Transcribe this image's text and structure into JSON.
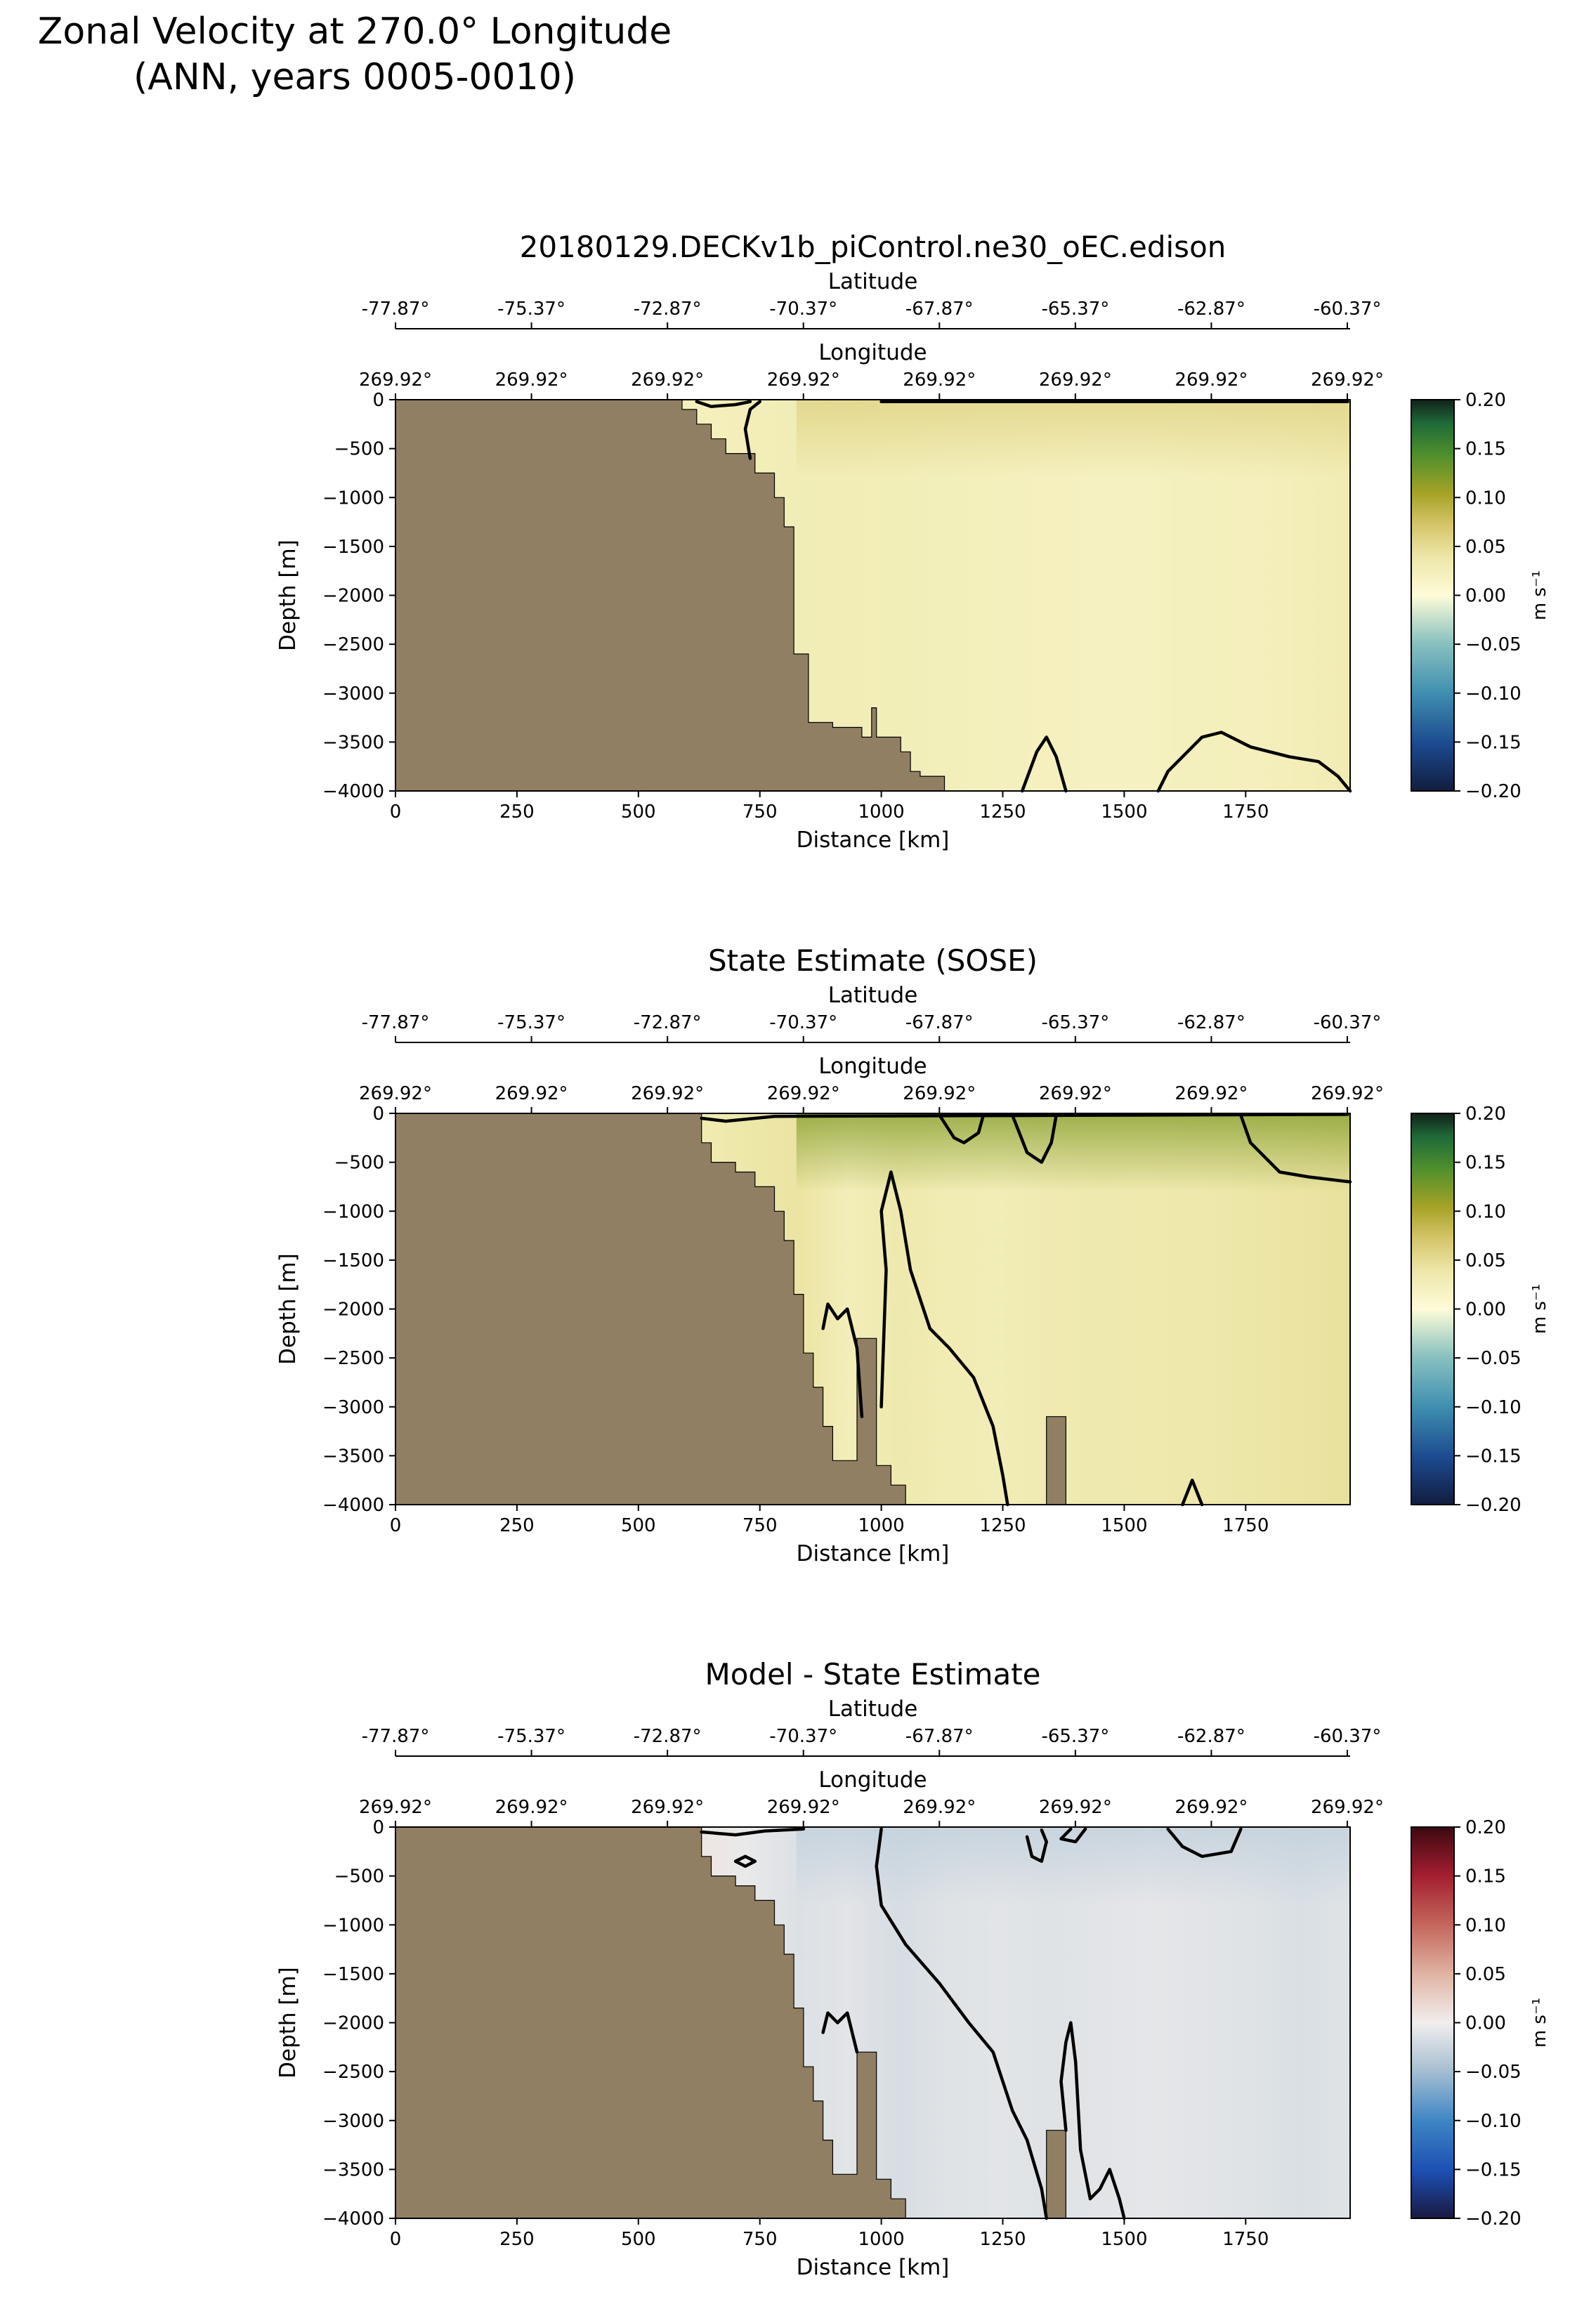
{
  "figure": {
    "suptitle": [
      "Zonal Velocity at 270.0° Longitude",
      "(ANN, years 0005-0010)"
    ]
  },
  "colors": {
    "land": "#917f63",
    "contour": "#000000"
  },
  "chart_data": [
    {
      "type": "heatmap",
      "title": "20180129.DECKv1b_piControl.ne30_oEC.edison",
      "xlabel": "Distance [km]",
      "ylabel": "Depth [m]",
      "xlim": [
        0,
        1965
      ],
      "ylim": [
        -4000,
        0
      ],
      "xticks": [
        0,
        250,
        500,
        750,
        1000,
        1250,
        1500,
        1750
      ],
      "yticks": [
        0,
        -500,
        -1000,
        -1500,
        -2000,
        -2500,
        -3000,
        -3500,
        -4000
      ],
      "top_axis_1": {
        "label": "Latitude",
        "ticks": [
          "-77.87°",
          "-75.37°",
          "-72.87°",
          "-70.37°",
          "-67.87°",
          "-65.37°",
          "-62.87°",
          "-60.37°"
        ]
      },
      "top_axis_2": {
        "label": "Longitude",
        "ticks": [
          "269.92°",
          "269.92°",
          "269.92°",
          "269.92°",
          "269.92°",
          "269.92°",
          "269.92°",
          "269.92°"
        ]
      },
      "colorbar": {
        "label": "m s⁻¹",
        "range": [
          -0.2,
          0.2
        ],
        "ticks": [
          "0.20",
          "0.15",
          "0.10",
          "0.05",
          "0.00",
          "−0.05",
          "−0.10",
          "−0.15",
          "−0.20"
        ],
        "colormap": "delta"
      },
      "bathymetry": [
        [
          0,
          0
        ],
        [
          590,
          0
        ],
        [
          590,
          -100
        ],
        [
          620,
          -100
        ],
        [
          620,
          -250
        ],
        [
          650,
          -250
        ],
        [
          650,
          -400
        ],
        [
          680,
          -400
        ],
        [
          680,
          -550
        ],
        [
          740,
          -550
        ],
        [
          740,
          -750
        ],
        [
          780,
          -750
        ],
        [
          780,
          -1000
        ],
        [
          800,
          -1000
        ],
        [
          800,
          -1300
        ],
        [
          820,
          -1300
        ],
        [
          820,
          -2600
        ],
        [
          850,
          -2600
        ],
        [
          850,
          -3300
        ],
        [
          900,
          -3300
        ],
        [
          900,
          -3350
        ],
        [
          960,
          -3350
        ],
        [
          960,
          -3450
        ],
        [
          980,
          -3450
        ],
        [
          980,
          -3150
        ],
        [
          990,
          -3150
        ],
        [
          990,
          -3450
        ],
        [
          1040,
          -3450
        ],
        [
          1040,
          -3600
        ],
        [
          1060,
          -3600
        ],
        [
          1060,
          -3800
        ],
        [
          1080,
          -3800
        ],
        [
          1080,
          -3850
        ],
        [
          1130,
          -3850
        ],
        [
          1130,
          -4000
        ],
        [
          0,
          -4000
        ]
      ],
      "zero_contours": [
        [
          [
            620,
            -20
          ],
          [
            650,
            -70
          ],
          [
            700,
            -50
          ],
          [
            730,
            -20
          ]
        ],
        [
          [
            750,
            -20
          ],
          [
            730,
            -100
          ],
          [
            720,
            -300
          ],
          [
            730,
            -600
          ]
        ],
        [
          [
            1000,
            -20
          ],
          [
            1960,
            -20
          ]
        ],
        [
          [
            1290,
            -4000
          ],
          [
            1320,
            -3600
          ],
          [
            1340,
            -3450
          ],
          [
            1360,
            -3650
          ],
          [
            1380,
            -4000
          ]
        ],
        [
          [
            1570,
            -4000
          ],
          [
            1590,
            -3800
          ],
          [
            1620,
            -3650
          ],
          [
            1660,
            -3450
          ],
          [
            1700,
            -3400
          ],
          [
            1760,
            -3550
          ],
          [
            1840,
            -3650
          ],
          [
            1900,
            -3700
          ],
          [
            1940,
            -3850
          ],
          [
            1965,
            -4000
          ]
        ]
      ],
      "field_profile": [
        0.002,
        0.003,
        0.006,
        0.012,
        0.018,
        0.02,
        0.022,
        0.025,
        0.028,
        0.027,
        0.026,
        0.024,
        0.022,
        0.021,
        0.02,
        0.02,
        0.022,
        0.023,
        0.025,
        0.03
      ],
      "surface_boost": 0.015
    },
    {
      "type": "heatmap",
      "title": "State Estimate (SOSE)",
      "xlabel": "Distance [km]",
      "ylabel": "Depth [m]",
      "xlim": [
        0,
        1965
      ],
      "ylim": [
        -4000,
        0
      ],
      "xticks": [
        0,
        250,
        500,
        750,
        1000,
        1250,
        1500,
        1750
      ],
      "yticks": [
        0,
        -500,
        -1000,
        -1500,
        -2000,
        -2500,
        -3000,
        -3500,
        -4000
      ],
      "top_axis_1": {
        "label": "Latitude",
        "ticks": [
          "-77.87°",
          "-75.37°",
          "-72.87°",
          "-70.37°",
          "-67.87°",
          "-65.37°",
          "-62.87°",
          "-60.37°"
        ]
      },
      "top_axis_2": {
        "label": "Longitude",
        "ticks": [
          "269.92°",
          "269.92°",
          "269.92°",
          "269.92°",
          "269.92°",
          "269.92°",
          "269.92°",
          "269.92°"
        ]
      },
      "colorbar": {
        "label": "m s⁻¹",
        "range": [
          -0.2,
          0.2
        ],
        "ticks": [
          "0.20",
          "0.15",
          "0.10",
          "0.05",
          "0.00",
          "−0.05",
          "−0.10",
          "−0.15",
          "−0.20"
        ],
        "colormap": "delta"
      },
      "bathymetry": [
        [
          0,
          0
        ],
        [
          630,
          0
        ],
        [
          630,
          -300
        ],
        [
          650,
          -300
        ],
        [
          650,
          -500
        ],
        [
          700,
          -500
        ],
        [
          700,
          -600
        ],
        [
          740,
          -600
        ],
        [
          740,
          -750
        ],
        [
          780,
          -750
        ],
        [
          780,
          -1000
        ],
        [
          800,
          -1000
        ],
        [
          800,
          -1300
        ],
        [
          820,
          -1300
        ],
        [
          820,
          -1850
        ],
        [
          840,
          -1850
        ],
        [
          840,
          -2450
        ],
        [
          860,
          -2450
        ],
        [
          860,
          -2800
        ],
        [
          880,
          -2800
        ],
        [
          880,
          -3200
        ],
        [
          900,
          -3200
        ],
        [
          900,
          -3550
        ],
        [
          950,
          -3550
        ],
        [
          950,
          -2300
        ],
        [
          990,
          -2300
        ],
        [
          990,
          -3600
        ],
        [
          1020,
          -3600
        ],
        [
          1020,
          -3800
        ],
        [
          1050,
          -3800
        ],
        [
          1050,
          -4000
        ],
        [
          1340,
          -4000
        ],
        [
          1340,
          -3100
        ],
        [
          1380,
          -3100
        ],
        [
          1380,
          -4000
        ],
        [
          0,
          -4000
        ]
      ],
      "zero_contours": [
        [
          [
            630,
            -50
          ],
          [
            680,
            -80
          ],
          [
            720,
            -60
          ],
          [
            780,
            -30
          ],
          [
            1960,
            -10
          ]
        ],
        [
          [
            1120,
            -20
          ],
          [
            1150,
            -250
          ],
          [
            1170,
            -300
          ],
          [
            1200,
            -200
          ],
          [
            1210,
            -20
          ]
        ],
        [
          [
            1270,
            -20
          ],
          [
            1300,
            -400
          ],
          [
            1330,
            -500
          ],
          [
            1350,
            -300
          ],
          [
            1360,
            -20
          ]
        ],
        [
          [
            1740,
            -20
          ],
          [
            1760,
            -300
          ],
          [
            1820,
            -600
          ],
          [
            1880,
            -650
          ],
          [
            1965,
            -700
          ]
        ],
        [
          [
            880,
            -2200
          ],
          [
            890,
            -1950
          ],
          [
            910,
            -2100
          ],
          [
            930,
            -2000
          ],
          [
            950,
            -2400
          ],
          [
            960,
            -3100
          ]
        ],
        [
          [
            1000,
            -3000
          ],
          [
            1010,
            -1600
          ],
          [
            1000,
            -1000
          ],
          [
            1020,
            -600
          ],
          [
            1040,
            -1000
          ],
          [
            1060,
            -1600
          ],
          [
            1100,
            -2200
          ],
          [
            1140,
            -2400
          ],
          [
            1190,
            -2700
          ],
          [
            1230,
            -3200
          ],
          [
            1250,
            -3700
          ],
          [
            1260,
            -4000
          ]
        ],
        [
          [
            1620,
            -4000
          ],
          [
            1640,
            -3750
          ],
          [
            1660,
            -4000
          ]
        ]
      ],
      "field_profile": [
        0.005,
        0.006,
        0.01,
        0.02,
        0.028,
        0.032,
        0.03,
        0.038,
        0.042,
        0.025,
        0.035,
        0.03,
        0.028,
        0.032,
        0.035,
        0.034,
        0.036,
        0.04,
        0.042,
        0.045
      ],
      "surface_boost": 0.03
    },
    {
      "type": "heatmap",
      "title": "Model - State Estimate",
      "xlabel": "Distance [km]",
      "ylabel": "Depth [m]",
      "xlim": [
        0,
        1965
      ],
      "ylim": [
        -4000,
        0
      ],
      "xticks": [
        0,
        250,
        500,
        750,
        1000,
        1250,
        1500,
        1750
      ],
      "yticks": [
        0,
        -500,
        -1000,
        -1500,
        -2000,
        -2500,
        -3000,
        -3500,
        -4000
      ],
      "top_axis_1": {
        "label": "Latitude",
        "ticks": [
          "-77.87°",
          "-75.37°",
          "-72.87°",
          "-70.37°",
          "-67.87°",
          "-65.37°",
          "-62.87°",
          "-60.37°"
        ]
      },
      "top_axis_2": {
        "label": "Longitude",
        "ticks": [
          "269.92°",
          "269.92°",
          "269.92°",
          "269.92°",
          "269.92°",
          "269.92°",
          "269.92°",
          "269.92°"
        ]
      },
      "colorbar": {
        "label": "m s⁻¹",
        "range": [
          -0.2,
          0.2
        ],
        "ticks": [
          "0.20",
          "0.15",
          "0.10",
          "0.05",
          "0.00",
          "−0.05",
          "−0.10",
          "−0.15",
          "−0.20"
        ],
        "colormap": "balance"
      },
      "bathymetry": [
        [
          0,
          0
        ],
        [
          630,
          0
        ],
        [
          630,
          -300
        ],
        [
          650,
          -300
        ],
        [
          650,
          -500
        ],
        [
          700,
          -500
        ],
        [
          700,
          -600
        ],
        [
          740,
          -600
        ],
        [
          740,
          -750
        ],
        [
          780,
          -750
        ],
        [
          780,
          -1000
        ],
        [
          800,
          -1000
        ],
        [
          800,
          -1300
        ],
        [
          820,
          -1300
        ],
        [
          820,
          -1850
        ],
        [
          840,
          -1850
        ],
        [
          840,
          -2450
        ],
        [
          860,
          -2450
        ],
        [
          860,
          -2800
        ],
        [
          880,
          -2800
        ],
        [
          880,
          -3200
        ],
        [
          900,
          -3200
        ],
        [
          900,
          -3550
        ],
        [
          950,
          -3550
        ],
        [
          950,
          -2300
        ],
        [
          990,
          -2300
        ],
        [
          990,
          -3600
        ],
        [
          1020,
          -3600
        ],
        [
          1020,
          -3800
        ],
        [
          1050,
          -3800
        ],
        [
          1050,
          -4000
        ],
        [
          1340,
          -4000
        ],
        [
          1340,
          -3100
        ],
        [
          1380,
          -3100
        ],
        [
          1380,
          -4000
        ],
        [
          0,
          -4000
        ]
      ],
      "zero_contours": [
        [
          [
            630,
            -50
          ],
          [
            700,
            -80
          ],
          [
            760,
            -40
          ],
          [
            840,
            -20
          ]
        ],
        [
          [
            700,
            -350
          ],
          [
            720,
            -300
          ],
          [
            740,
            -350
          ],
          [
            720,
            -400
          ],
          [
            700,
            -350
          ]
        ],
        [
          [
            1000,
            -20
          ],
          [
            990,
            -400
          ],
          [
            1000,
            -800
          ],
          [
            1050,
            -1200
          ],
          [
            1120,
            -1600
          ],
          [
            1180,
            -2000
          ],
          [
            1230,
            -2300
          ],
          [
            1250,
            -2600
          ],
          [
            1270,
            -2900
          ],
          [
            1300,
            -3200
          ],
          [
            1330,
            -3700
          ],
          [
            1340,
            -4000
          ]
        ],
        [
          [
            880,
            -2100
          ],
          [
            890,
            -1900
          ],
          [
            910,
            -2000
          ],
          [
            930,
            -1900
          ],
          [
            950,
            -2300
          ]
        ],
        [
          [
            1300,
            -100
          ],
          [
            1310,
            -300
          ],
          [
            1330,
            -350
          ],
          [
            1340,
            -150
          ],
          [
            1330,
            -30
          ]
        ],
        [
          [
            1390,
            -20
          ],
          [
            1370,
            -120
          ],
          [
            1400,
            -150
          ],
          [
            1420,
            -20
          ]
        ],
        [
          [
            1590,
            -20
          ],
          [
            1620,
            -200
          ],
          [
            1660,
            -300
          ],
          [
            1720,
            -250
          ],
          [
            1740,
            -20
          ]
        ],
        [
          [
            1380,
            -3100
          ],
          [
            1370,
            -2600
          ],
          [
            1380,
            -2200
          ],
          [
            1390,
            -2000
          ],
          [
            1400,
            -2400
          ],
          [
            1410,
            -3300
          ],
          [
            1430,
            -3800
          ],
          [
            1450,
            -3700
          ],
          [
            1470,
            -3500
          ],
          [
            1490,
            -3800
          ],
          [
            1500,
            -4000
          ]
        ]
      ],
      "field_profile": [
        -0.003,
        -0.002,
        -0.004,
        -0.008,
        -0.01,
        0.005,
        0.008,
        -0.005,
        -0.014,
        -0.01,
        -0.018,
        -0.012,
        -0.01,
        -0.012,
        -0.01,
        -0.008,
        -0.01,
        -0.012,
        -0.016,
        -0.012
      ],
      "surface_boost": -0.008
    }
  ]
}
